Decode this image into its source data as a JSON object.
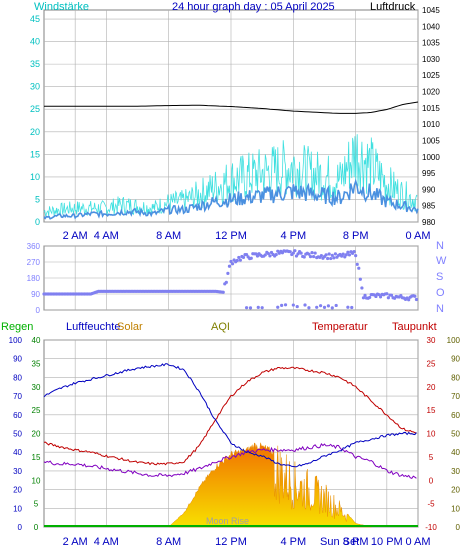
{
  "header": {
    "left_label": "Windstärke",
    "title": "24 hour graph day : 05 April 2025",
    "right_label": "Luftdruck"
  },
  "legend2": {
    "regen": "Regen",
    "luftfeuchte": "Luftfeuchte",
    "solar": "Solar",
    "aqi": "AQI",
    "temperatur": "Temperatur",
    "taupunkt": "Taupunkt"
  },
  "compass": [
    "N",
    "W",
    "S",
    "O",
    "N"
  ],
  "annotations": {
    "moon_rise": "Moon Rise",
    "sun_set": "Sun Set"
  },
  "colors": {
    "wind": "#00d8d8",
    "gust": "#40e0e0",
    "wind_avg": "#4a90e0",
    "pressure": "#000000",
    "direction": "#8080f0",
    "rain": "#00b000",
    "humidity": "#0000c0",
    "solar": "#f0a000",
    "temperature": "#c00000",
    "dewpoint": "#8000c0",
    "grid": "#b0b0b0"
  },
  "chart_data": [
    {
      "type": "line",
      "title": "24 hour graph day : 05 April 2025",
      "x_ticks": [
        "2 AM",
        "4 AM",
        "8 AM",
        "12 PM",
        "4 PM",
        "8 PM",
        "0 AM"
      ],
      "x_tick_hours": [
        2,
        4,
        8,
        12,
        16,
        20,
        24
      ],
      "y_left": {
        "label": "Windstärke",
        "ylim": [
          0,
          47
        ],
        "ticks": [
          0,
          5,
          10,
          15,
          20,
          25,
          30,
          35,
          40,
          45
        ]
      },
      "y_right": {
        "label": "Luftdruck",
        "ylim": [
          980,
          1045
        ],
        "ticks": [
          980,
          985,
          990,
          995,
          1000,
          1005,
          1010,
          1015,
          1020,
          1025,
          1030,
          1035,
          1040,
          1045
        ]
      },
      "series": [
        {
          "name": "Windstärke",
          "axis": "left",
          "x": [
            0,
            1,
            2,
            3,
            4,
            5,
            6,
            7,
            8,
            9,
            10,
            11,
            12,
            13,
            14,
            15,
            16,
            17,
            18,
            19,
            20,
            21,
            22,
            23,
            24
          ],
          "values": [
            1,
            1.5,
            1.5,
            2,
            2,
            2.5,
            2.5,
            2,
            3,
            3,
            4,
            5,
            5.5,
            6,
            6.5,
            7,
            7.5,
            7,
            6.5,
            6,
            9,
            7,
            5,
            4,
            3
          ]
        },
        {
          "name": "Böen",
          "axis": "left",
          "x": [
            0,
            1,
            2,
            3,
            4,
            5,
            6,
            7,
            8,
            9,
            10,
            11,
            12,
            13,
            14,
            15,
            16,
            17,
            18,
            19,
            20,
            21,
            22,
            23,
            24
          ],
          "values": [
            3,
            3.5,
            4,
            4,
            4,
            5,
            4.5,
            4,
            5.5,
            6,
            8,
            10,
            12,
            13,
            14,
            15,
            16,
            14,
            13,
            12,
            20,
            16,
            11,
            8,
            6
          ]
        },
        {
          "name": "Luftdruck",
          "axis": "right",
          "x": [
            0,
            2,
            4,
            6,
            8,
            10,
            12,
            14,
            16,
            18,
            19,
            20,
            21,
            22,
            23,
            24
          ],
          "values": [
            1015.5,
            1015.5,
            1015.5,
            1015.5,
            1015.7,
            1015.8,
            1015.4,
            1014.8,
            1014,
            1013.5,
            1013.3,
            1013.3,
            1013.6,
            1014.5,
            1016,
            1016.8
          ]
        }
      ]
    },
    {
      "type": "scatter",
      "title": "",
      "ylim": [
        0,
        360
      ],
      "y_ticks": [
        0,
        45,
        90,
        135,
        180,
        225,
        270,
        315,
        360
      ],
      "x": [
        0,
        1,
        2,
        3,
        3.5,
        4,
        5,
        6,
        7,
        8,
        9,
        10,
        11,
        11.5,
        12,
        12.5,
        13,
        13.5,
        14,
        15,
        16,
        17,
        18,
        19,
        20,
        20.5,
        21,
        22,
        23,
        24
      ],
      "values": [
        90,
        90,
        90,
        90,
        105,
        105,
        105,
        105,
        105,
        105,
        105,
        105,
        105,
        100,
        270,
        290,
        300,
        305,
        310,
        320,
        320,
        310,
        305,
        300,
        320,
        75,
        80,
        80,
        70,
        70
      ]
    },
    {
      "type": "line",
      "title": "",
      "y_left_outer": {
        "label": "Regen",
        "ylim": [
          0,
          100
        ],
        "ticks": [
          0,
          10,
          20,
          30,
          40,
          50,
          60,
          70,
          80,
          90,
          100
        ]
      },
      "y_left_inner": {
        "ylim": [
          0,
          40
        ],
        "ticks": [
          0,
          5,
          10,
          15,
          20,
          25,
          30,
          35,
          40
        ]
      },
      "y_right_inner": {
        "label": "Temperatur",
        "ylim": [
          -10,
          30
        ],
        "ticks": [
          -10,
          -5,
          0,
          5,
          10,
          15,
          20,
          25,
          30
        ]
      },
      "y_right_outer": {
        "ylim": [
          0,
          100
        ],
        "ticks": [
          0,
          10,
          20,
          30,
          40,
          50,
          60,
          70,
          80,
          90,
          100
        ]
      },
      "series": [
        {
          "name": "Luftfeuchte",
          "axis": "left_outer",
          "x": [
            0,
            1,
            2,
            3,
            4,
            5,
            6,
            7,
            8,
            9,
            10,
            11,
            12,
            13,
            14,
            15,
            16,
            17,
            18,
            19,
            20,
            21,
            22,
            23,
            24
          ],
          "values": [
            70,
            74,
            77,
            79,
            81,
            83,
            85,
            86,
            87,
            84,
            72,
            57,
            45,
            40,
            38,
            34,
            32,
            34,
            38,
            41,
            45,
            47,
            49,
            50,
            50
          ]
        },
        {
          "name": "Temperatur",
          "axis": "right_inner",
          "x": [
            0,
            1,
            2,
            3,
            4,
            5,
            6,
            7,
            8,
            9,
            10,
            11,
            12,
            13,
            14,
            15,
            16,
            17,
            18,
            19,
            20,
            21,
            22,
            23,
            24
          ],
          "values": [
            8,
            7.2,
            6.5,
            6,
            5.2,
            4.5,
            3.8,
            3.5,
            3.5,
            4,
            7.5,
            13,
            18,
            21,
            23,
            24,
            24,
            23.5,
            23,
            22,
            20,
            17,
            14,
            11,
            10
          ]
        },
        {
          "name": "Taupunkt",
          "axis": "right_inner",
          "x": [
            0,
            1,
            2,
            3,
            4,
            5,
            6,
            7,
            8,
            9,
            10,
            11,
            12,
            13,
            14,
            15,
            16,
            17,
            18,
            19,
            20,
            21,
            22,
            23,
            24
          ],
          "values": [
            4,
            3.5,
            3.5,
            3,
            2.5,
            2,
            1.5,
            1,
            1,
            1.5,
            2.5,
            4,
            5,
            6,
            6.5,
            6.5,
            6.5,
            7,
            7.5,
            7,
            5,
            4,
            2,
            1,
            0.5
          ]
        },
        {
          "name": "Solar",
          "axis": "right_outer",
          "x": [
            8,
            9,
            10,
            11,
            12,
            13,
            13.5,
            14,
            15,
            16,
            17,
            18,
            19,
            20,
            21
          ],
          "values": [
            0,
            8,
            22,
            33,
            40,
            42,
            45,
            44,
            40,
            30,
            26,
            20,
            12,
            2,
            0
          ]
        },
        {
          "name": "Regen",
          "axis": "left_outer",
          "x": [
            0,
            24
          ],
          "values": [
            0,
            0
          ]
        }
      ],
      "x_ticks": [
        "2 AM",
        "4 AM",
        "8 AM",
        "12 PM",
        "4 PM",
        "8 PM",
        "10 PM",
        "0 AM"
      ]
    }
  ]
}
